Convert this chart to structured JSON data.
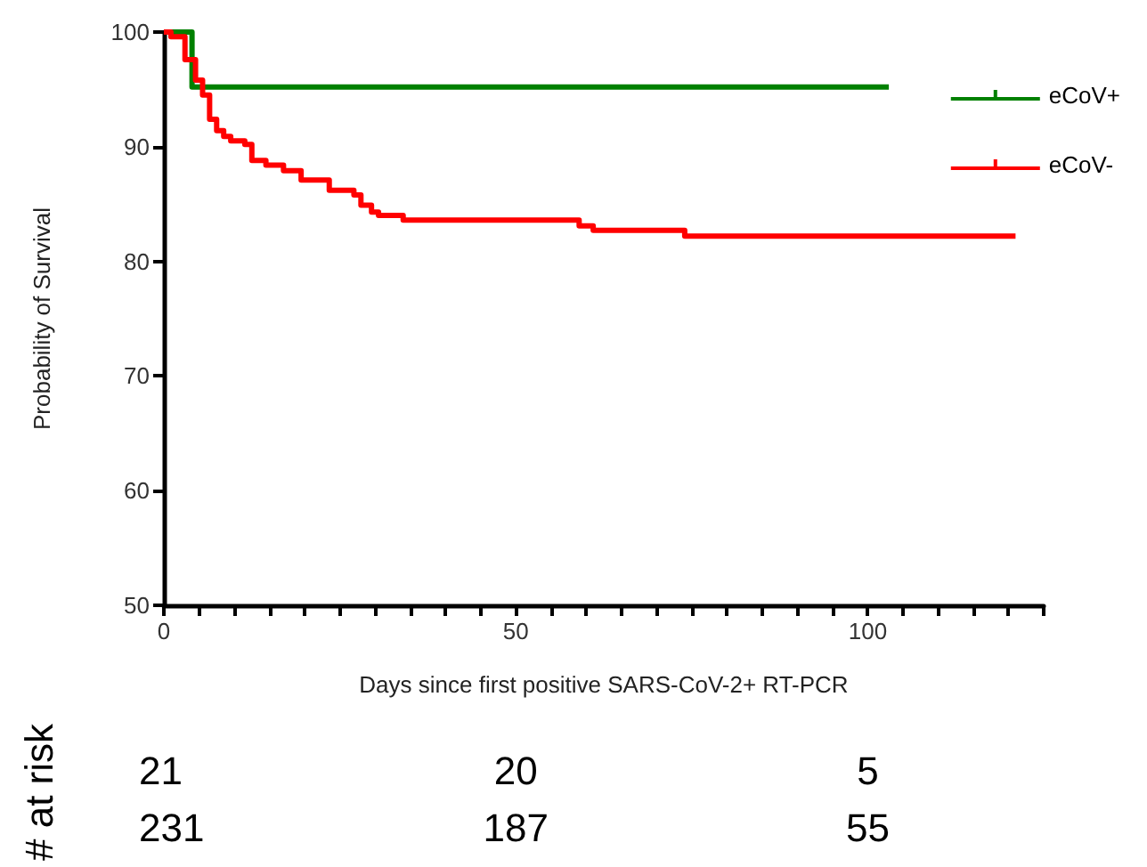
{
  "chart_data": {
    "type": "step",
    "xlabel": "Days since first positive SARS-CoV-2+ RT-PCR",
    "ylabel": "Probability of Survival",
    "series": [
      {
        "name": "eCoV+",
        "color": "#008000",
        "x": [
          0,
          4,
          103
        ],
        "values": [
          100,
          95.2,
          95.2
        ]
      },
      {
        "name": "eCoV-",
        "color": "#ff0000",
        "x": [
          0,
          1,
          3,
          4.5,
          5.5,
          6.5,
          7.5,
          8.5,
          9.5,
          11.5,
          12.5,
          14.5,
          17,
          19.5,
          23.5,
          27,
          28,
          29.5,
          30.5,
          34,
          59,
          61,
          74,
          121
        ],
        "values": [
          100,
          99.6,
          97.6,
          95.8,
          94.5,
          92.4,
          91.4,
          90.9,
          90.5,
          90.2,
          88.8,
          88.4,
          87.9,
          87.1,
          86.2,
          85.8,
          84.9,
          84.3,
          84.0,
          83.6,
          83.1,
          82.7,
          82.2,
          82.2
        ]
      }
    ],
    "xlim": [
      0,
      125
    ],
    "xticks": [
      0,
      {
        "value": 5,
        "label": null
      },
      {
        "value": 10,
        "label": null
      },
      {
        "value": 15,
        "label": null
      },
      {
        "value": 20,
        "label": null
      },
      {
        "value": 25,
        "label": null
      },
      {
        "value": 30,
        "label": null
      },
      {
        "value": 35,
        "label": null
      },
      {
        "value": 40,
        "label": null
      },
      {
        "value": 45,
        "label": null
      },
      50,
      {
        "value": 55,
        "label": null
      },
      {
        "value": 60,
        "label": null
      },
      {
        "value": 65,
        "label": null
      },
      {
        "value": 70,
        "label": null
      },
      {
        "value": 75,
        "label": null
      },
      {
        "value": 80,
        "label": null
      },
      {
        "value": 85,
        "label": null
      },
      {
        "value": 90,
        "label": null
      },
      {
        "value": 95,
        "label": null
      },
      100,
      {
        "value": 105,
        "label": null
      },
      {
        "value": 110,
        "label": null
      },
      {
        "value": 115,
        "label": null
      },
      {
        "value": 120,
        "label": null
      },
      {
        "value": 125,
        "label": null
      }
    ],
    "ylim": [
      50,
      100
    ],
    "yticks": [
      50,
      60,
      70,
      80,
      90,
      100
    ],
    "annotations": [
      "# at risk",
      "21",
      "20",
      "5",
      "231",
      "187",
      "55"
    ],
    "legend": "top right",
    "grid": false
  }
}
